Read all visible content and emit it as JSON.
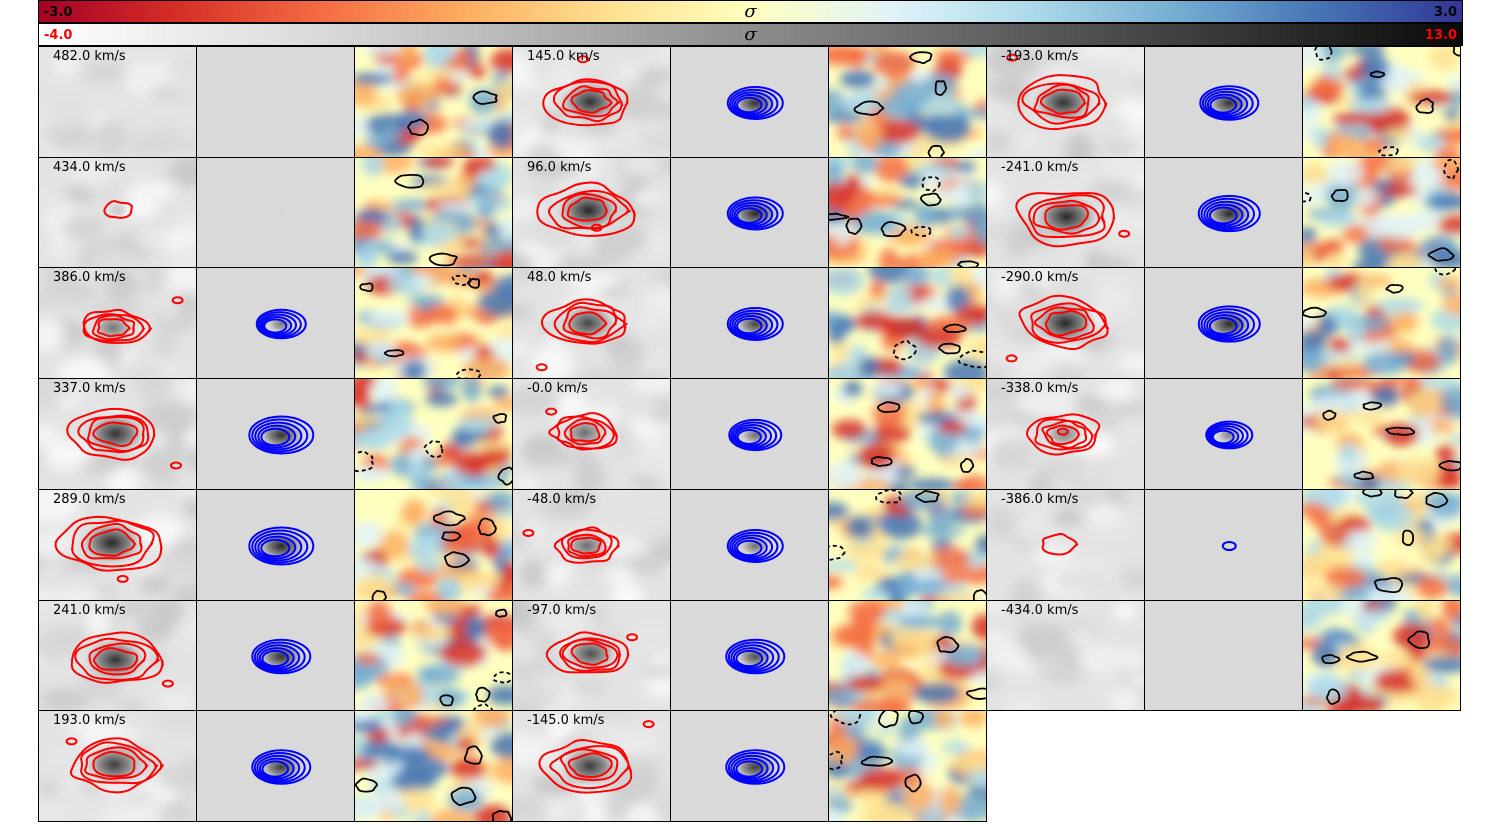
{
  "colorbar_residual": {
    "min_label": "-3.0",
    "max_label": "3.0",
    "title": "σ"
  },
  "colorbar_flux": {
    "min_label": "-4.0",
    "max_label": "13.0",
    "title": "σ"
  },
  "colors": {
    "data_contour": "#ff0000",
    "model_contour": "#0000ff",
    "residual_contour": "#000000"
  },
  "channels": [
    {
      "velocity": "482.0 km/s",
      "strength": 0.05,
      "data_scale": 0.0,
      "model_scale": 0.0
    },
    {
      "velocity": "434.0 km/s",
      "strength": 0.12,
      "data_scale": 0.25,
      "model_scale": 0.0
    },
    {
      "velocity": "386.0 km/s",
      "strength": 0.55,
      "data_scale": 0.7,
      "model_scale": 0.75
    },
    {
      "velocity": "337.0 km/s",
      "strength": 0.9,
      "data_scale": 1.0,
      "model_scale": 1.0
    },
    {
      "velocity": "289.0 km/s",
      "strength": 0.95,
      "data_scale": 1.1,
      "model_scale": 1.0
    },
    {
      "velocity": "241.0 km/s",
      "strength": 0.9,
      "data_scale": 1.0,
      "model_scale": 0.9
    },
    {
      "velocity": "193.0 km/s",
      "strength": 0.85,
      "data_scale": 1.0,
      "model_scale": 0.9
    },
    {
      "velocity": "145.0 km/s",
      "strength": 0.9,
      "data_scale": 0.9,
      "model_scale": 0.85
    },
    {
      "velocity": "96.0 km/s",
      "strength": 0.95,
      "data_scale": 1.0,
      "model_scale": 0.85
    },
    {
      "velocity": "48.0 km/s",
      "strength": 0.8,
      "data_scale": 0.9,
      "model_scale": 0.85
    },
    {
      "velocity": "-0.0 km/s",
      "strength": 0.6,
      "data_scale": 0.7,
      "model_scale": 0.8
    },
    {
      "velocity": "-48.0 km/s",
      "strength": 0.6,
      "data_scale": 0.65,
      "model_scale": 0.85
    },
    {
      "velocity": "-97.0 km/s",
      "strength": 0.75,
      "data_scale": 0.85,
      "model_scale": 0.9
    },
    {
      "velocity": "-145.0 km/s",
      "strength": 0.85,
      "data_scale": 1.0,
      "model_scale": 0.9
    },
    {
      "velocity": "-193.0 km/s",
      "strength": 0.9,
      "data_scale": 1.0,
      "model_scale": 0.9
    },
    {
      "velocity": "-241.0 km/s",
      "strength": 0.95,
      "data_scale": 1.1,
      "model_scale": 0.95
    },
    {
      "velocity": "-290.0 km/s",
      "strength": 0.95,
      "data_scale": 1.0,
      "model_scale": 0.95
    },
    {
      "velocity": "-338.0 km/s",
      "strength": 0.5,
      "data_scale": 0.75,
      "model_scale": 0.7
    },
    {
      "velocity": "-386.0 km/s",
      "strength": 0.05,
      "data_scale": 0.3,
      "model_scale": 0.15
    },
    {
      "velocity": "-434.0 km/s",
      "strength": 0.02,
      "data_scale": 0.0,
      "model_scale": 0.0
    }
  ]
}
